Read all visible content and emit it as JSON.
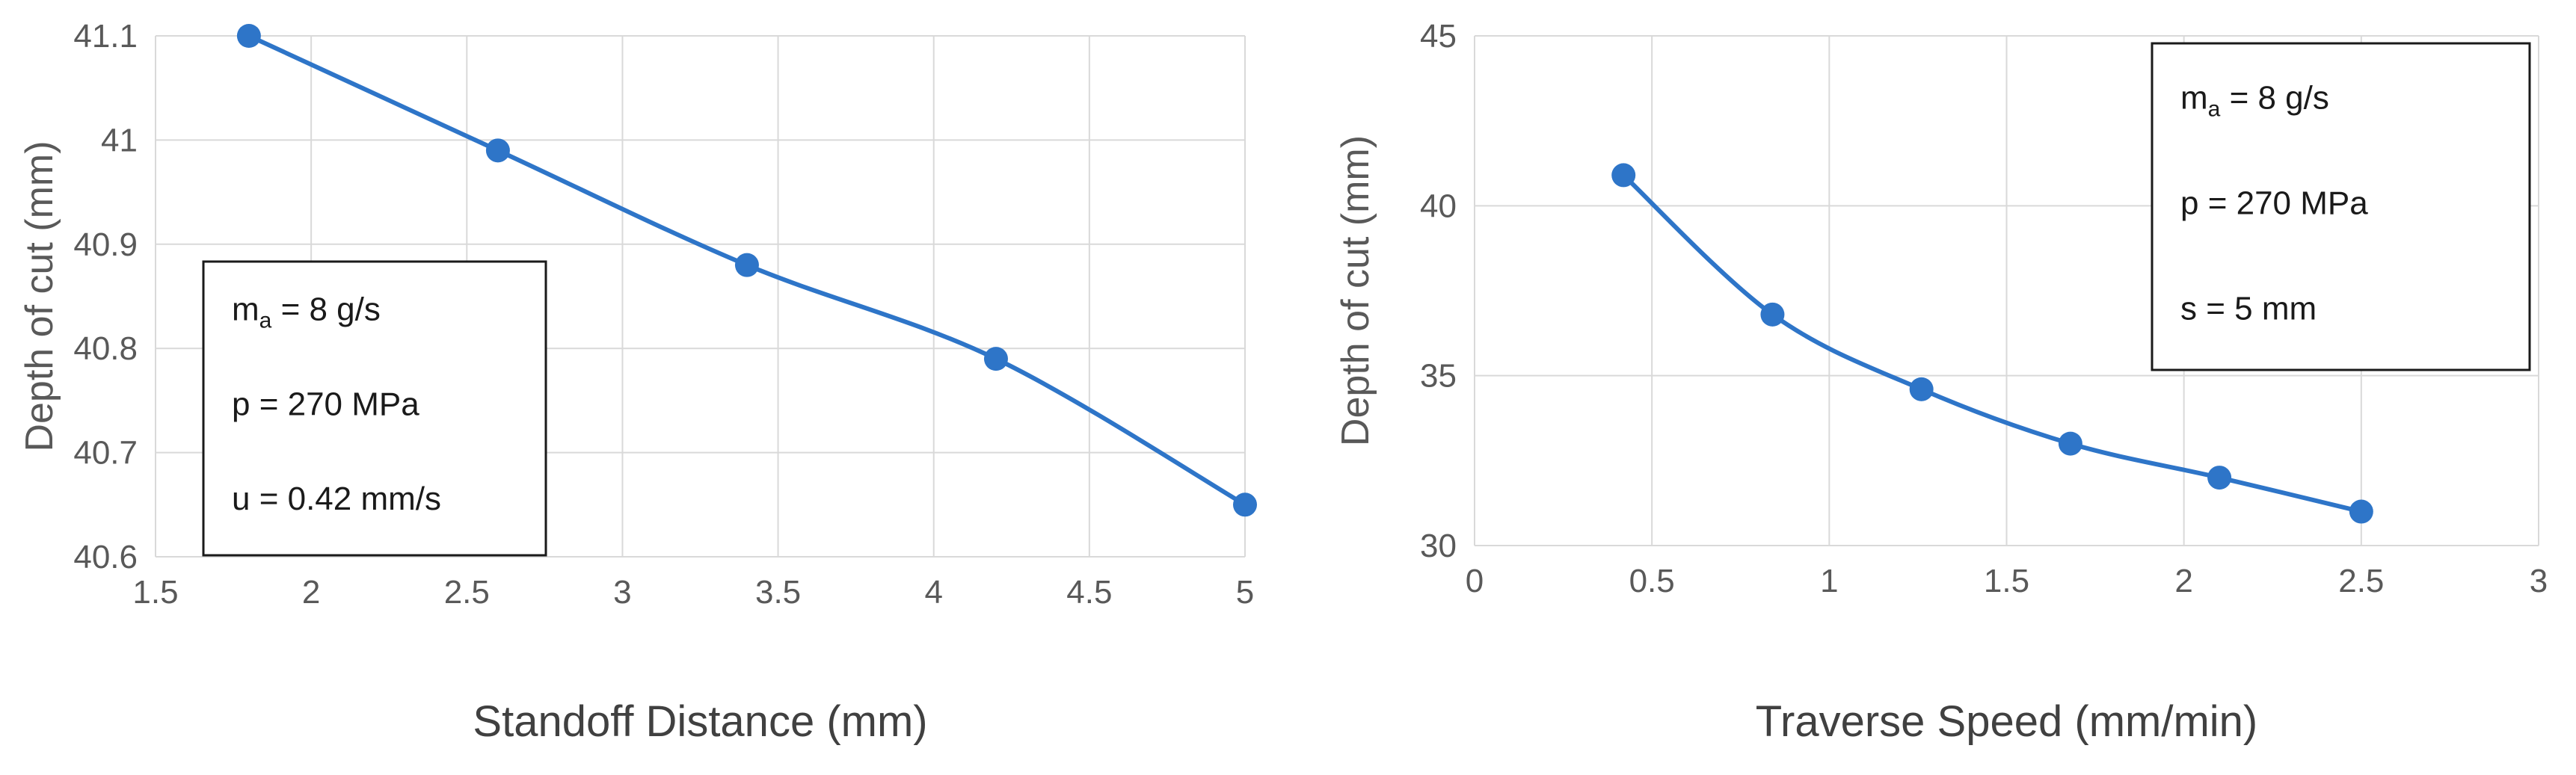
{
  "colors": {
    "series": "#2E75C8",
    "grid": "#D9D9D9",
    "axis_text": "#595959",
    "box_border": "#1a1a1a"
  },
  "chart_data": [
    {
      "type": "line",
      "smooth": true,
      "markers": true,
      "title": "",
      "xlabel": "Standoff Distance (mm)",
      "ylabel": "Depth of cut (mm)",
      "xlim": [
        1.5,
        5
      ],
      "ylim": [
        40.6,
        41.1
      ],
      "xticks": [
        1.5,
        2,
        2.5,
        3,
        3.5,
        4,
        4.5,
        5
      ],
      "yticks": [
        40.6,
        40.7,
        40.8,
        40.9,
        41,
        41.1
      ],
      "grid": true,
      "legend": "none",
      "series": [
        {
          "x": [
            1.8,
            2.6,
            3.4,
            4.2,
            5.0
          ],
          "y": [
            41.1,
            40.99,
            40.88,
            40.79,
            40.65
          ]
        }
      ],
      "annotation_box": {
        "placement": "bottom-left",
        "lines": [
          {
            "base": "m",
            "sub": "a",
            "rest": " = 8 g/s"
          },
          {
            "base": "p = 270 MPa",
            "sub": "",
            "rest": ""
          },
          {
            "base": "u = 0.42 mm/s",
            "sub": "",
            "rest": ""
          }
        ]
      }
    },
    {
      "type": "line",
      "smooth": true,
      "markers": true,
      "title": "",
      "xlabel": "Traverse Speed (mm/min)",
      "ylabel": "Depth of cut (mm)",
      "xlim": [
        0,
        3
      ],
      "ylim": [
        30,
        45
      ],
      "xticks": [
        0,
        0.5,
        1,
        1.5,
        2,
        2.5,
        3
      ],
      "yticks": [
        30,
        35,
        40,
        45
      ],
      "grid": true,
      "legend": "none",
      "series": [
        {
          "x": [
            0.42,
            0.84,
            1.26,
            1.68,
            2.1,
            2.5
          ],
          "y": [
            40.9,
            36.8,
            34.6,
            33.0,
            32.0,
            31.0
          ]
        }
      ],
      "annotation_box": {
        "placement": "top-right",
        "lines": [
          {
            "base": "m",
            "sub": "a",
            "rest": " = 8 g/s"
          },
          {
            "base": "p = 270 MPa",
            "sub": "",
            "rest": ""
          },
          {
            "base": "s = 5 mm",
            "sub": "",
            "rest": ""
          }
        ]
      }
    }
  ]
}
